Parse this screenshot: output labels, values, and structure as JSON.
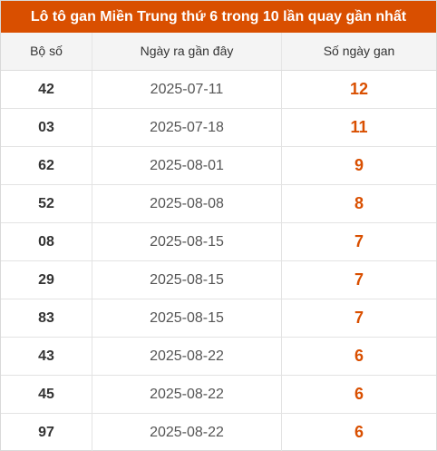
{
  "title": "Lô tô gan Miền Trung thứ 6 trong 10 lần quay gần nhất",
  "colors": {
    "accent": "#d94f00",
    "header_bg": "#f4f4f4",
    "border": "#e3e3e3"
  },
  "table": {
    "headers": [
      "Bộ số",
      "Ngày ra gần đây",
      "Số ngày gan"
    ],
    "rows": [
      {
        "number": "42",
        "date": "2025-07-11",
        "days": "12"
      },
      {
        "number": "03",
        "date": "2025-07-18",
        "days": "11"
      },
      {
        "number": "62",
        "date": "2025-08-01",
        "days": "9"
      },
      {
        "number": "52",
        "date": "2025-08-08",
        "days": "8"
      },
      {
        "number": "08",
        "date": "2025-08-15",
        "days": "7"
      },
      {
        "number": "29",
        "date": "2025-08-15",
        "days": "7"
      },
      {
        "number": "83",
        "date": "2025-08-15",
        "days": "7"
      },
      {
        "number": "43",
        "date": "2025-08-22",
        "days": "6"
      },
      {
        "number": "45",
        "date": "2025-08-22",
        "days": "6"
      },
      {
        "number": "97",
        "date": "2025-08-22",
        "days": "6"
      }
    ]
  }
}
